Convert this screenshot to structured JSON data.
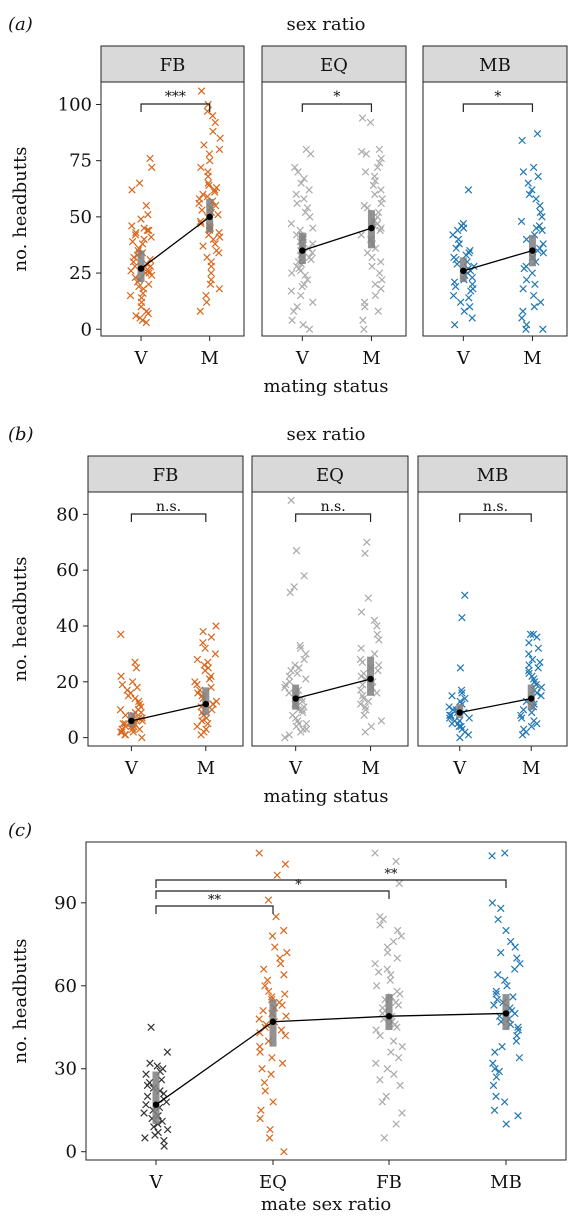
{
  "colors": {
    "FB": "#d8671c",
    "EQ": "#aaaaaa",
    "MB": "#1f77b4",
    "V": "#333333",
    "ci": "#7f7f7f",
    "strip": "#d9d9d9"
  },
  "chart_data": [
    {
      "panel": "(a)",
      "type": "scatter",
      "title": "sex ratio",
      "xlabel": "mating status",
      "ylabel": "no. headbutts",
      "ylim": [
        -3,
        110
      ],
      "yticks": [
        0,
        25,
        50,
        75,
        100
      ],
      "facets": [
        {
          "name": "FB",
          "color": "FB",
          "categories": [
            "V",
            "M"
          ],
          "means": [
            27,
            50
          ],
          "ci": [
            [
              21,
              35
            ],
            [
              43,
              58
            ]
          ],
          "points": [
            [
              3,
              4,
              5,
              6,
              7,
              8,
              10,
              12,
              14,
              15,
              16,
              18,
              19,
              20,
              21,
              22,
              23,
              24,
              25,
              25,
              26,
              26,
              27,
              28,
              28,
              29,
              30,
              31,
              32,
              33,
              34,
              35,
              36,
              38,
              39,
              40,
              41,
              42,
              43,
              44,
              44,
              45,
              46,
              49,
              51,
              55,
              62,
              65,
              72,
              76
            ],
            [
              8,
              12,
              15,
              18,
              20,
              22,
              25,
              28,
              30,
              32,
              34,
              35,
              37,
              38,
              40,
              41,
              42,
              43,
              44,
              45,
              46,
              47,
              48,
              50,
              51,
              52,
              53,
              54,
              55,
              56,
              57,
              58,
              59,
              60,
              61,
              62,
              63,
              64,
              65,
              68,
              70,
              72,
              75,
              78,
              80,
              82,
              85,
              88,
              92,
              95,
              97,
              100,
              106
            ]
          ],
          "significance": "***"
        },
        {
          "name": "EQ",
          "color": "EQ",
          "categories": [
            "V",
            "M"
          ],
          "means": [
            35,
            45
          ],
          "ci": [
            [
              29,
              43
            ],
            [
              36,
              53
            ]
          ],
          "points": [
            [
              0,
              2,
              4,
              8,
              10,
              12,
              15,
              17,
              19,
              20,
              22,
              24,
              25,
              26,
              27,
              28,
              29,
              30,
              31,
              32,
              33,
              34,
              35,
              36,
              37,
              38,
              39,
              40,
              41,
              42,
              44,
              45,
              47,
              50,
              52,
              54,
              56,
              58,
              60,
              62,
              65,
              67,
              70,
              72,
              78,
              80
            ],
            [
              0,
              4,
              8,
              10,
              12,
              15,
              18,
              20,
              22,
              25,
              28,
              30,
              32,
              34,
              36,
              38,
              40,
              42,
              44,
              45,
              46,
              47,
              48,
              50,
              52,
              54,
              55,
              56,
              58,
              60,
              62,
              64,
              66,
              68,
              70,
              72,
              74,
              76,
              78,
              79,
              80,
              92,
              94
            ]
          ],
          "significance": "*"
        },
        {
          "name": "MB",
          "color": "MB",
          "categories": [
            "V",
            "M"
          ],
          "means": [
            26,
            35
          ],
          "ci": [
            [
              21,
              32
            ],
            [
              28,
              42
            ]
          ],
          "points": [
            [
              2,
              5,
              8,
              10,
              12,
              14,
              15,
              17,
              18,
              19,
              20,
              21,
              22,
              23,
              24,
              25,
              26,
              27,
              28,
              29,
              30,
              31,
              32,
              33,
              34,
              35,
              36,
              38,
              40,
              42,
              44,
              45,
              46,
              47,
              62
            ],
            [
              0,
              0,
              2,
              5,
              8,
              10,
              12,
              15,
              18,
              20,
              22,
              25,
              27,
              28,
              30,
              32,
              34,
              35,
              36,
              38,
              40,
              42,
              44,
              45,
              46,
              48,
              50,
              52,
              55,
              58,
              60,
              62,
              65,
              68,
              70,
              72,
              84,
              87
            ]
          ],
          "significance": "*"
        }
      ]
    },
    {
      "panel": "(b)",
      "type": "scatter",
      "title": "sex ratio",
      "xlabel": "mating status",
      "ylabel": "no. headbutts",
      "ylim": [
        -3,
        88
      ],
      "yticks": [
        0,
        20,
        40,
        60,
        80
      ],
      "facets": [
        {
          "name": "FB",
          "color": "FB",
          "categories": [
            "V",
            "M"
          ],
          "means": [
            6,
            12
          ],
          "ci": [
            [
              4,
              9
            ],
            [
              8,
              18
            ]
          ],
          "points": [
            [
              0,
              1,
              1,
              2,
              2,
              2,
              3,
              3,
              3,
              4,
              4,
              4,
              5,
              5,
              5,
              6,
              6,
              6,
              7,
              7,
              8,
              8,
              9,
              9,
              10,
              10,
              11,
              12,
              13,
              14,
              15,
              16,
              17,
              18,
              19,
              20,
              22,
              25,
              27,
              37
            ],
            [
              1,
              2,
              3,
              4,
              5,
              6,
              7,
              8,
              9,
              10,
              11,
              12,
              12,
              13,
              14,
              15,
              16,
              17,
              18,
              19,
              20,
              21,
              22,
              24,
              25,
              26,
              27,
              28,
              30,
              32,
              34,
              36,
              38,
              40
            ]
          ],
          "significance": "n.s."
        },
        {
          "name": "EQ",
          "color": "EQ",
          "categories": [
            "V",
            "M"
          ],
          "means": [
            14,
            21
          ],
          "ci": [
            [
              10,
              19
            ],
            [
              15,
              29
            ]
          ],
          "points": [
            [
              0,
              1,
              2,
              3,
              3,
              4,
              5,
              5,
              6,
              7,
              8,
              9,
              10,
              10,
              11,
              12,
              13,
              14,
              15,
              16,
              17,
              18,
              19,
              20,
              21,
              22,
              23,
              24,
              25,
              26,
              28,
              30,
              32,
              33,
              52,
              54,
              58,
              67,
              85
            ],
            [
              2,
              4,
              6,
              8,
              10,
              11,
              12,
              13,
              14,
              15,
              16,
              17,
              18,
              19,
              20,
              21,
              22,
              23,
              24,
              25,
              26,
              27,
              28,
              30,
              32,
              35,
              37,
              40,
              42,
              45,
              50,
              66,
              70
            ]
          ],
          "significance": "n.s."
        },
        {
          "name": "MB",
          "color": "MB",
          "categories": [
            "V",
            "M"
          ],
          "means": [
            9,
            14
          ],
          "ci": [
            [
              7,
              12
            ],
            [
              10,
              19
            ]
          ],
          "points": [
            [
              0,
              1,
              2,
              3,
              4,
              4,
              5,
              5,
              6,
              6,
              7,
              7,
              8,
              8,
              9,
              9,
              10,
              10,
              11,
              12,
              13,
              14,
              15,
              16,
              17,
              25,
              43,
              51
            ],
            [
              1,
              2,
              3,
              4,
              5,
              6,
              7,
              8,
              9,
              10,
              11,
              12,
              13,
              14,
              15,
              16,
              17,
              18,
              19,
              20,
              21,
              22,
              23,
              24,
              25,
              26,
              27,
              28,
              30,
              32,
              34,
              36,
              37,
              37
            ]
          ],
          "significance": "n.s."
        }
      ]
    },
    {
      "panel": "(c)",
      "type": "scatter",
      "xlabel": "mate sex ratio",
      "ylabel": "no. headbutts",
      "ylim": [
        -3,
        112
      ],
      "yticks": [
        0,
        30,
        60,
        90
      ],
      "categories": [
        "V",
        "EQ",
        "FB",
        "MB"
      ],
      "colors": [
        "V",
        "FB",
        "EQ",
        "MB"
      ],
      "means": [
        17,
        47,
        49,
        50
      ],
      "ci": [
        [
          10,
          29
        ],
        [
          38,
          55
        ],
        [
          44,
          57
        ],
        [
          44,
          57
        ]
      ],
      "points": [
        [
          2,
          4,
          5,
          6,
          7,
          8,
          9,
          10,
          11,
          12,
          13,
          14,
          15,
          16,
          17,
          18,
          19,
          20,
          21,
          22,
          23,
          24,
          25,
          26,
          28,
          29,
          30,
          31,
          32,
          36,
          45
        ],
        [
          0,
          5,
          8,
          12,
          15,
          18,
          22,
          25,
          28,
          30,
          32,
          34,
          36,
          38,
          40,
          42,
          43,
          44,
          45,
          46,
          47,
          48,
          49,
          50,
          51,
          52,
          53,
          54,
          55,
          56,
          57,
          58,
          60,
          62,
          64,
          66,
          68,
          70,
          72,
          74,
          78,
          80,
          85,
          91,
          100,
          104,
          108
        ],
        [
          5,
          10,
          14,
          18,
          20,
          24,
          26,
          28,
          30,
          32,
          34,
          36,
          38,
          40,
          42,
          44,
          45,
          46,
          47,
          48,
          49,
          50,
          51,
          52,
          53,
          54,
          55,
          56,
          57,
          58,
          60,
          62,
          64,
          65,
          66,
          68,
          70,
          72,
          74,
          76,
          78,
          80,
          82,
          84,
          85,
          97,
          105,
          108
        ],
        [
          10,
          13,
          15,
          18,
          20,
          24,
          27,
          29,
          30,
          32,
          34,
          36,
          38,
          40,
          42,
          44,
          45,
          46,
          47,
          48,
          49,
          50,
          51,
          52,
          53,
          54,
          55,
          56,
          57,
          58,
          60,
          62,
          64,
          66,
          68,
          70,
          72,
          74,
          76,
          80,
          84,
          88,
          90,
          107,
          108
        ]
      ],
      "comparisons": [
        {
          "from": "V",
          "to": "EQ",
          "label": "**"
        },
        {
          "from": "V",
          "to": "FB",
          "label": "*"
        },
        {
          "from": "V",
          "to": "MB",
          "label": "**"
        }
      ]
    }
  ]
}
